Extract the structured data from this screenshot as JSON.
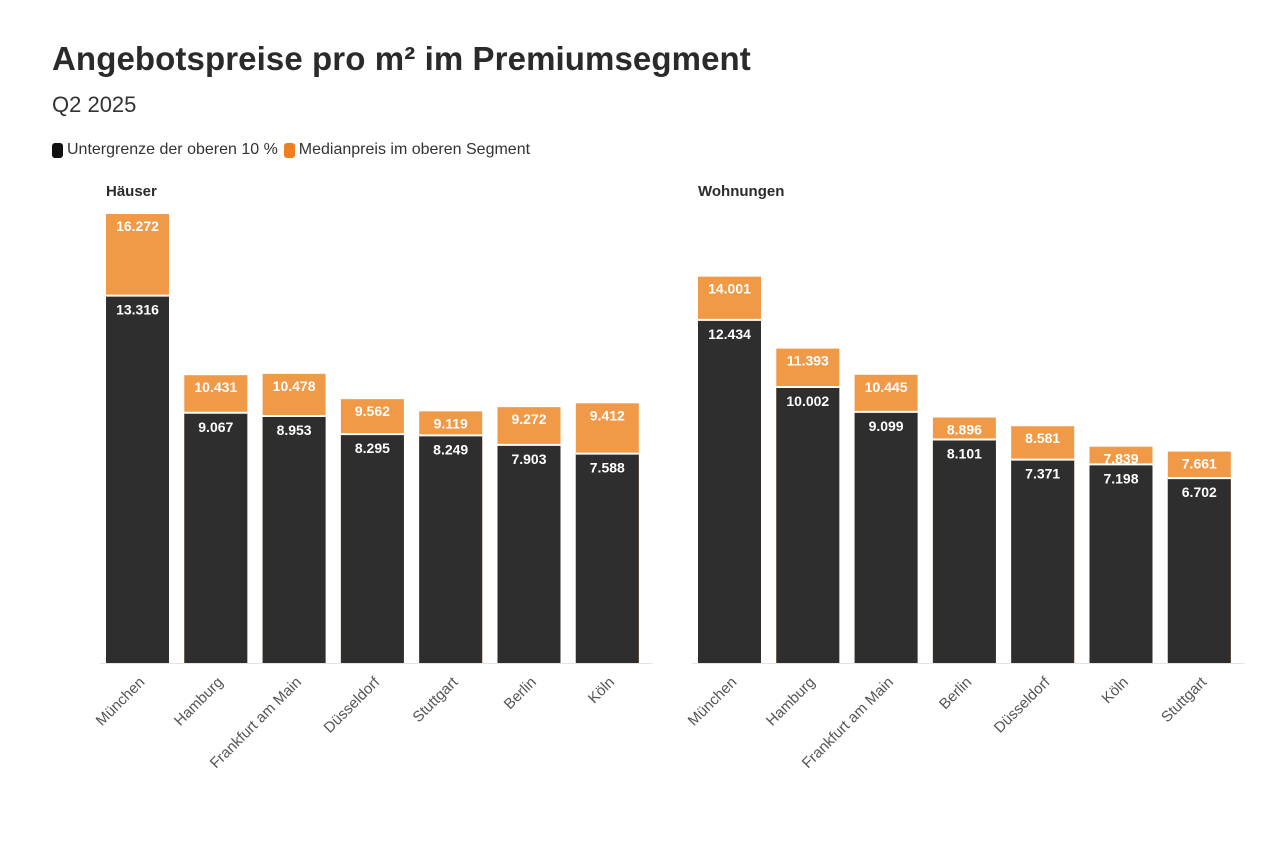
{
  "header": {
    "title": "Angebotspreise pro m² im Premiumsegment",
    "subtitle": "Q2 2025"
  },
  "legend": [
    {
      "label": "Untergrenze der oberen 10 %",
      "color": "#2e2e2e"
    },
    {
      "label": "Medianpreis im oberen Segment",
      "color": "#f09a47"
    }
  ],
  "chart_data": [
    {
      "type": "bar",
      "stacked": true,
      "title": "Häuser",
      "categories": [
        "München",
        "Hamburg",
        "Frankfurt am Main",
        "Düsseldorf",
        "Stuttgart",
        "Berlin",
        "Köln"
      ],
      "series": [
        {
          "name": "Untergrenze der oberen 10 %",
          "values": [
            13316,
            9067,
            8953,
            8295,
            8249,
            7903,
            7588
          ],
          "labels": [
            "13.316",
            "9.067",
            "8.953",
            "8.295",
            "8.249",
            "7.903",
            "7.588"
          ]
        },
        {
          "name": "Medianpreis im oberen Segment",
          "values": [
            16272,
            10431,
            10478,
            9562,
            9119,
            9272,
            9412
          ],
          "labels": [
            "16.272",
            "10.431",
            "10.478",
            "9.562",
            "9.119",
            "9.272",
            "9.412"
          ]
        }
      ],
      "xlabel": "",
      "ylabel": "",
      "grid": false
    },
    {
      "type": "bar",
      "stacked": true,
      "title": "Wohnungen",
      "categories": [
        "München",
        "Hamburg",
        "Frankfurt am Main",
        "Berlin",
        "Düsseldorf",
        "Köln",
        "Stuttgart"
      ],
      "series": [
        {
          "name": "Untergrenze der oberen 10 %",
          "values": [
            12434,
            10002,
            9099,
            8101,
            7371,
            7198,
            6702
          ],
          "labels": [
            "12.434",
            "10.002",
            "9.099",
            "8.101",
            "7.371",
            "7.198",
            "6.702"
          ]
        },
        {
          "name": "Medianpreis im oberen Segment",
          "values": [
            14001,
            11393,
            10445,
            8896,
            8581,
            7839,
            7661
          ],
          "labels": [
            "14.001",
            "11.393",
            "10.445",
            "8.896",
            "8.581",
            "7.839",
            "7.661"
          ]
        }
      ],
      "xlabel": "",
      "ylabel": "",
      "grid": false
    }
  ]
}
